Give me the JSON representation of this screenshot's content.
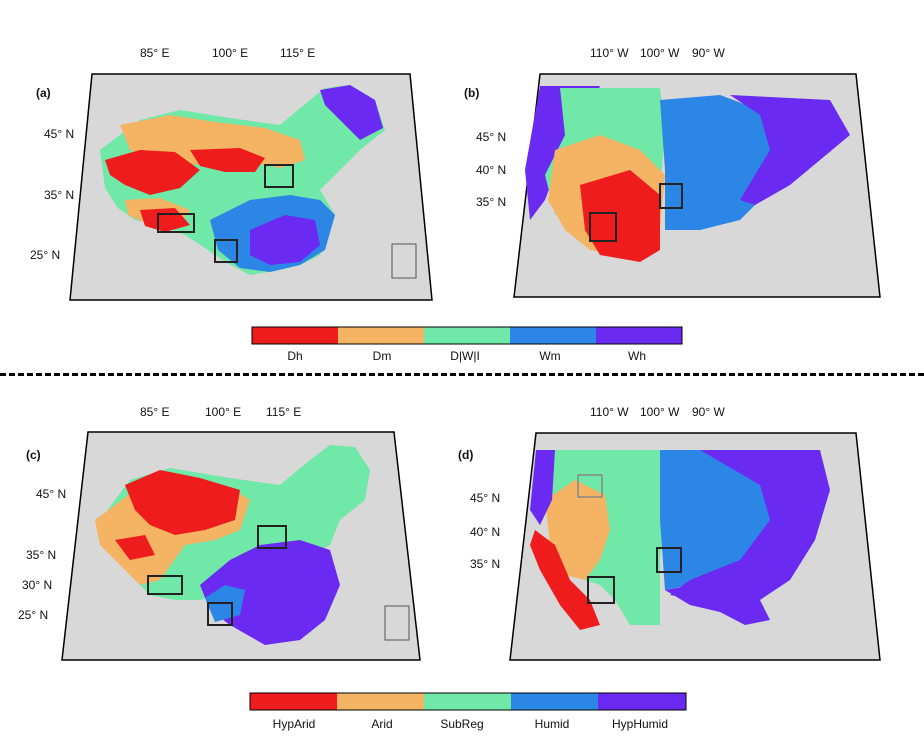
{
  "panels": [
    {
      "id": "a",
      "label": "(a)",
      "lon_labels": [
        "85° E",
        "100° E",
        "115° E"
      ],
      "lat_labels": [
        "45° N",
        "35° N",
        "25° N"
      ]
    },
    {
      "id": "b",
      "label": "(b)",
      "lon_labels": [
        "110° W",
        "100° W",
        "90° W"
      ],
      "lat_labels": [
        "45° N",
        "40° N",
        "35° N"
      ]
    },
    {
      "id": "c",
      "label": "(c)",
      "lon_labels": [
        "85° E",
        "100° E",
        "115° E"
      ],
      "lat_labels": [
        "45° N",
        "35° N",
        "30° N",
        "25° N"
      ]
    },
    {
      "id": "d",
      "label": "(d)",
      "lon_labels": [
        "110° W",
        "100° W",
        "90° W"
      ],
      "lat_labels": [
        "45° N",
        "40° N",
        "35° N"
      ]
    }
  ],
  "colorbar_top": {
    "labels": [
      "Dh",
      "Dm",
      "D|W|I",
      "Wm",
      "Wh"
    ],
    "colors": [
      "#ee1c1c",
      "#f5b463",
      "#6fe8a8",
      "#2c86e6",
      "#6a2af2"
    ]
  },
  "colorbar_bottom": {
    "labels": [
      "HypArid",
      "Arid",
      "SubReg",
      "Humid",
      "HypHumid"
    ],
    "colors": [
      "#ee1c1c",
      "#f5b463",
      "#6fe8a8",
      "#2c86e6",
      "#6a2af2"
    ]
  },
  "colors": {
    "background_land": "#d9d9d9",
    "border": "#000000",
    "box": "#222222"
  }
}
